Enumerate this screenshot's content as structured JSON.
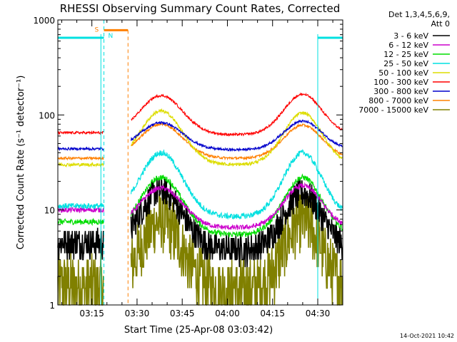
{
  "chart_data": {
    "type": "line",
    "title": "RHESSI Observing Summary Count Rates, Corrected",
    "xlabel": "Start Time (25-Apr-08 03:03:42)",
    "ylabel": "Corrected Count Rate (s⁻¹ detector⁻¹)",
    "yscale": "log",
    "ylim": [
      1,
      1000
    ],
    "xlim_minutes": [
      3.7,
      98.3
    ],
    "x_ticks": [
      {
        "m": 15,
        "label": "03:15"
      },
      {
        "m": 30,
        "label": "03:30"
      },
      {
        "m": 45,
        "label": "03:45"
      },
      {
        "m": 60,
        "label": "04:00"
      },
      {
        "m": 75,
        "label": "04:15"
      },
      {
        "m": 90,
        "label": "04:30"
      }
    ],
    "y_ticks": [
      {
        "v": 1,
        "label": "1"
      },
      {
        "v": 10,
        "label": "10"
      },
      {
        "v": 100,
        "label": "100"
      },
      {
        "v": 1000,
        "label": "1000"
      }
    ],
    "legend": {
      "header": [
        "Det 1,3,4,5,6,9,",
        "Att 0"
      ],
      "placement": "top-right"
    },
    "gaps_minutes": [
      [
        19,
        28
      ]
    ],
    "series": [
      {
        "name": "3 - 6 keV",
        "color": "#000000",
        "pre": 4.5,
        "base": 3.8,
        "p1": 16,
        "p2": 15,
        "noise": 0.12
      },
      {
        "name": "6 - 12 keV",
        "color": "#cc00cc",
        "pre": 10,
        "base": 6.5,
        "p1": 17,
        "p2": 18,
        "noise": 0.06
      },
      {
        "name": "12 - 25 keV",
        "color": "#00dd00",
        "pre": 7.5,
        "base": 5.5,
        "p1": 22,
        "p2": 22,
        "noise": 0.07
      },
      {
        "name": "25 - 50 keV",
        "color": "#00e0e0",
        "pre": 11,
        "base": 8.5,
        "p1": 40,
        "p2": 40,
        "noise": 0.07
      },
      {
        "name": "50 - 100 keV",
        "color": "#dddd00",
        "pre": 30,
        "base": 30,
        "p1": 110,
        "p2": 105,
        "noise": 0.04
      },
      {
        "name": "100 - 300 keV",
        "color": "#ff0000",
        "pre": 65,
        "base": 62,
        "p1": 160,
        "p2": 165,
        "noise": 0.03
      },
      {
        "name": "300 - 800 keV",
        "color": "#0000cc",
        "pre": 44,
        "base": 43,
        "p1": 83,
        "p2": 86,
        "noise": 0.03
      },
      {
        "name": "800 - 7000 keV",
        "color": "#ff8000",
        "pre": 35,
        "base": 35,
        "p1": 80,
        "p2": 78,
        "noise": 0.03
      },
      {
        "name": "7000 - 15000 keV",
        "color": "#808000",
        "pre": 1.6,
        "base": 1.4,
        "p1": 7.5,
        "p2": 7.5,
        "noise": 0.25
      }
    ],
    "saa_flags": {
      "color": "#00e0e0",
      "level": 650,
      "segments": [
        [
          3.7,
          19
        ],
        [
          90,
          98.3
        ]
      ],
      "markers": [
        {
          "m": 19,
          "label": "N"
        },
        {
          "m": 98.3,
          "label": ""
        }
      ]
    },
    "night_flags": {
      "color": "#ff8000",
      "label": "S",
      "start": 19,
      "end": 27,
      "level": 780
    }
  },
  "footer": {
    "timestamp": "14-Oct-2021 10:42"
  }
}
